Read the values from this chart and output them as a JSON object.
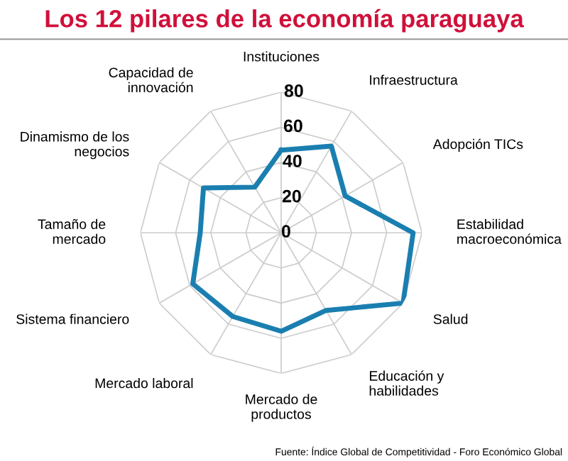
{
  "chart_data": {
    "type": "radar",
    "title": "Los 12 pilares de la economía paraguaya",
    "categories": [
      "Instituciones",
      "Infraestructura",
      "Adopción TICs",
      "Estabilidad\nmacroeconómica",
      "Salud",
      "Educación y\nhabilidades",
      "Mercado de\nproductos",
      "Mercado laboral",
      "Sistema financiero",
      "Tamaño de\nmercado",
      "Dinamismo de los\nnegocios",
      "Capacidad de\ninnovación"
    ],
    "series": [
      {
        "color": "#1a7fb0",
        "values": [
          47,
          57,
          42,
          75,
          80,
          51,
          56,
          55,
          58,
          46,
          51,
          30
        ]
      }
    ],
    "ylim": [
      0,
      80
    ],
    "yticks": [
      0,
      20,
      40,
      60,
      80
    ],
    "grid": true,
    "legend": false,
    "annotations": [
      "Fuente: Índice Global de Competitividad - Foro Económico Global"
    ]
  }
}
